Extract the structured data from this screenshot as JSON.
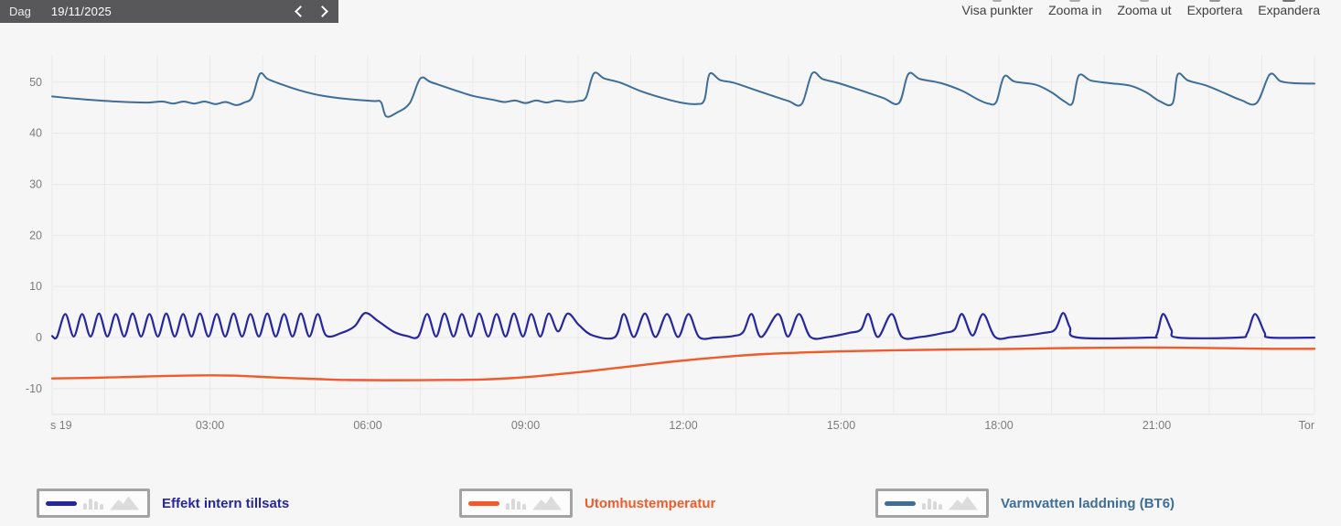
{
  "date_nav": {
    "mode_label": "Dag",
    "date": "19/11/2025",
    "prev_icon": "chevron-left",
    "next_icon": "chevron-right"
  },
  "toolbar": {
    "buttons": [
      "Visa punkter",
      "Zooma in",
      "Zooma ut",
      "Exportera",
      "Expandera"
    ]
  },
  "chart_data": {
    "type": "line",
    "title": "",
    "grid": true,
    "x_axis": {
      "unit": "hours",
      "range": [
        0,
        24
      ],
      "labels": [
        "s 19",
        "03:00",
        "06:00",
        "09:00",
        "12:00",
        "15:00",
        "18:00",
        "21:00",
        "Tor"
      ],
      "label_hours": [
        0,
        3,
        6,
        9,
        12,
        15,
        18,
        21,
        24
      ]
    },
    "y_axis": {
      "ticks": [
        -10,
        0,
        10,
        20,
        30,
        40,
        50
      ],
      "range": [
        -15,
        55
      ]
    },
    "series": [
      {
        "name": "Effekt intern tillsats",
        "color": "#2626a0",
        "points": [
          [
            0,
            0.3
          ],
          [
            0.09,
            0.1
          ],
          [
            0.25,
            4.6
          ],
          [
            0.41,
            0.2
          ],
          [
            0.57,
            4.6
          ],
          [
            0.73,
            0.2
          ],
          [
            0.89,
            4.7
          ],
          [
            1.05,
            0.2
          ],
          [
            1.21,
            4.6
          ],
          [
            1.37,
            0.2
          ],
          [
            1.53,
            4.7
          ],
          [
            1.69,
            0.2
          ],
          [
            1.85,
            4.6
          ],
          [
            2.01,
            0.2
          ],
          [
            2.17,
            4.7
          ],
          [
            2.33,
            0.2
          ],
          [
            2.49,
            4.6
          ],
          [
            2.65,
            0.2
          ],
          [
            2.81,
            4.7
          ],
          [
            2.97,
            0.2
          ],
          [
            3.13,
            4.6
          ],
          [
            3.29,
            0.2
          ],
          [
            3.45,
            4.7
          ],
          [
            3.61,
            0.2
          ],
          [
            3.77,
            4.6
          ],
          [
            3.93,
            0.2
          ],
          [
            4.09,
            4.7
          ],
          [
            4.25,
            0.2
          ],
          [
            4.41,
            4.6
          ],
          [
            4.57,
            0.2
          ],
          [
            4.73,
            4.7
          ],
          [
            4.89,
            0.2
          ],
          [
            5.05,
            4.6
          ],
          [
            5.21,
            0.4
          ],
          [
            5.5,
            0.9
          ],
          [
            5.75,
            2.2
          ],
          [
            5.95,
            4.8
          ],
          [
            6.2,
            3.2
          ],
          [
            6.5,
            1.1
          ],
          [
            6.75,
            0.3
          ],
          [
            6.96,
            0.2
          ],
          [
            7.13,
            4.6
          ],
          [
            7.3,
            0.2
          ],
          [
            7.46,
            4.7
          ],
          [
            7.63,
            0.2
          ],
          [
            7.79,
            4.6
          ],
          [
            7.96,
            0.2
          ],
          [
            8.12,
            4.7
          ],
          [
            8.29,
            0.2
          ],
          [
            8.45,
            4.6
          ],
          [
            8.62,
            0.2
          ],
          [
            8.78,
            4.7
          ],
          [
            8.95,
            0.2
          ],
          [
            9.11,
            4.6
          ],
          [
            9.28,
            0.2
          ],
          [
            9.44,
            4.7
          ],
          [
            9.62,
            1.2
          ],
          [
            9.8,
            4.7
          ],
          [
            10.02,
            2.4
          ],
          [
            10.28,
            0.4
          ],
          [
            10.7,
            0.1
          ],
          [
            10.87,
            4.6
          ],
          [
            11.06,
            0.1
          ],
          [
            11.27,
            4.7
          ],
          [
            11.47,
            0.1
          ],
          [
            11.69,
            4.6
          ],
          [
            11.9,
            0.1
          ],
          [
            12.1,
            4.6
          ],
          [
            12.3,
            0.1
          ],
          [
            12.6,
            0
          ],
          [
            12.95,
            0.3
          ],
          [
            13.14,
            1.1
          ],
          [
            13.3,
            4.6
          ],
          [
            13.48,
            0.1
          ],
          [
            13.8,
            4.6
          ],
          [
            13.99,
            0.2
          ],
          [
            14.2,
            4.6
          ],
          [
            14.42,
            0.1
          ],
          [
            14.75,
            0.1
          ],
          [
            15.15,
            0.9
          ],
          [
            15.38,
            1.6
          ],
          [
            15.52,
            4.6
          ],
          [
            15.7,
            0.1
          ],
          [
            15.96,
            4.6
          ],
          [
            16.16,
            0.1
          ],
          [
            16.5,
            0.1
          ],
          [
            16.95,
            0.9
          ],
          [
            17.16,
            1.6
          ],
          [
            17.3,
            4.6
          ],
          [
            17.5,
            0.4
          ],
          [
            17.7,
            4.6
          ],
          [
            17.93,
            0.1
          ],
          [
            18.25,
            0.1
          ],
          [
            18.85,
            0.9
          ],
          [
            19.07,
            1.6
          ],
          [
            19.22,
            4.8
          ],
          [
            19.35,
            2.0
          ],
          [
            19.5,
            0
          ],
          [
            20.85,
            0
          ],
          [
            21.0,
            0.5
          ],
          [
            21.12,
            4.6
          ],
          [
            21.28,
            1.5
          ],
          [
            21.4,
            0
          ],
          [
            22.55,
            0
          ],
          [
            22.72,
            0.8
          ],
          [
            22.87,
            4.6
          ],
          [
            23.05,
            1.0
          ],
          [
            23.15,
            0
          ],
          [
            24,
            0
          ]
        ]
      },
      {
        "name": "Utomhustemperatur",
        "color": "#f15a29",
        "points": [
          [
            0,
            -8.0
          ],
          [
            0.7,
            -7.9
          ],
          [
            1.5,
            -7.7
          ],
          [
            2.2,
            -7.5
          ],
          [
            3,
            -7.4
          ],
          [
            3.6,
            -7.5
          ],
          [
            4.2,
            -7.8
          ],
          [
            5,
            -8.1
          ],
          [
            5.6,
            -8.3
          ],
          [
            6.5,
            -8.35
          ],
          [
            7.5,
            -8.3
          ],
          [
            8.2,
            -8.2
          ],
          [
            8.8,
            -7.9
          ],
          [
            9.4,
            -7.4
          ],
          [
            10,
            -6.8
          ],
          [
            10.6,
            -6.1
          ],
          [
            11.2,
            -5.4
          ],
          [
            11.8,
            -4.7
          ],
          [
            12.4,
            -4.1
          ],
          [
            13,
            -3.6
          ],
          [
            13.6,
            -3.2
          ],
          [
            14.2,
            -2.95
          ],
          [
            15,
            -2.7
          ],
          [
            16,
            -2.5
          ],
          [
            17,
            -2.35
          ],
          [
            18,
            -2.25
          ],
          [
            19,
            -2.1
          ],
          [
            20,
            -2.0
          ],
          [
            20.8,
            -1.95
          ],
          [
            21.6,
            -2.0
          ],
          [
            22.4,
            -2.1
          ],
          [
            23.2,
            -2.2
          ],
          [
            24,
            -2.2
          ]
        ]
      },
      {
        "name": "Varmvatten laddning (BT6)",
        "color": "#3e6d98",
        "points": [
          [
            0,
            47.2
          ],
          [
            0.4,
            46.8
          ],
          [
            0.9,
            46.4
          ],
          [
            1.4,
            46.1
          ],
          [
            1.8,
            46.0
          ],
          [
            2.1,
            46.2
          ],
          [
            2.3,
            45.8
          ],
          [
            2.5,
            46.2
          ],
          [
            2.7,
            45.8
          ],
          [
            2.9,
            46.2
          ],
          [
            3.1,
            45.7
          ],
          [
            3.3,
            46.1
          ],
          [
            3.5,
            45.5
          ],
          [
            3.65,
            46.0
          ],
          [
            3.8,
            47.0
          ],
          [
            3.95,
            51.6
          ],
          [
            4.1,
            50.6
          ],
          [
            4.35,
            49.6
          ],
          [
            4.7,
            48.4
          ],
          [
            5.1,
            47.4
          ],
          [
            5.6,
            46.7
          ],
          [
            6.1,
            46.3
          ],
          [
            6.25,
            46.1
          ],
          [
            6.35,
            43.3
          ],
          [
            6.55,
            44.0
          ],
          [
            6.8,
            45.9
          ],
          [
            7.0,
            50.7
          ],
          [
            7.2,
            50.0
          ],
          [
            7.6,
            48.6
          ],
          [
            8.0,
            47.3
          ],
          [
            8.4,
            46.5
          ],
          [
            8.6,
            46.1
          ],
          [
            8.8,
            46.4
          ],
          [
            9.0,
            45.9
          ],
          [
            9.2,
            46.4
          ],
          [
            9.4,
            46.0
          ],
          [
            9.6,
            46.4
          ],
          [
            9.8,
            46.1
          ],
          [
            10.0,
            46.3
          ],
          [
            10.15,
            47.0
          ],
          [
            10.3,
            51.7
          ],
          [
            10.5,
            50.7
          ],
          [
            10.8,
            49.9
          ],
          [
            11.2,
            48.2
          ],
          [
            11.6,
            46.9
          ],
          [
            11.95,
            46.0
          ],
          [
            12.25,
            45.7
          ],
          [
            12.4,
            46.5
          ],
          [
            12.5,
            51.6
          ],
          [
            12.7,
            50.4
          ],
          [
            12.95,
            49.9
          ],
          [
            13.3,
            48.7
          ],
          [
            13.7,
            47.3
          ],
          [
            14.0,
            46.3
          ],
          [
            14.25,
            45.7
          ],
          [
            14.45,
            51.7
          ],
          [
            14.65,
            50.6
          ],
          [
            14.95,
            49.8
          ],
          [
            15.4,
            48.3
          ],
          [
            15.8,
            46.9
          ],
          [
            16.1,
            45.9
          ],
          [
            16.28,
            51.6
          ],
          [
            16.5,
            50.6
          ],
          [
            16.9,
            49.8
          ],
          [
            17.3,
            48.3
          ],
          [
            17.6,
            46.6
          ],
          [
            17.8,
            45.8
          ],
          [
            17.95,
            46.1
          ],
          [
            18.1,
            51.1
          ],
          [
            18.3,
            50.1
          ],
          [
            18.7,
            49.5
          ],
          [
            19.0,
            48.0
          ],
          [
            19.25,
            46.2
          ],
          [
            19.4,
            45.9
          ],
          [
            19.52,
            51.3
          ],
          [
            19.75,
            50.3
          ],
          [
            20.1,
            49.8
          ],
          [
            20.5,
            49.3
          ],
          [
            20.8,
            48.0
          ],
          [
            21.05,
            46.3
          ],
          [
            21.3,
            45.8
          ],
          [
            21.4,
            51.5
          ],
          [
            21.6,
            50.3
          ],
          [
            21.95,
            49.3
          ],
          [
            22.3,
            47.8
          ],
          [
            22.6,
            46.5
          ],
          [
            22.9,
            45.9
          ],
          [
            23.15,
            51.5
          ],
          [
            23.35,
            50.2
          ],
          [
            23.6,
            49.8
          ],
          [
            24,
            49.7
          ]
        ]
      }
    ]
  }
}
